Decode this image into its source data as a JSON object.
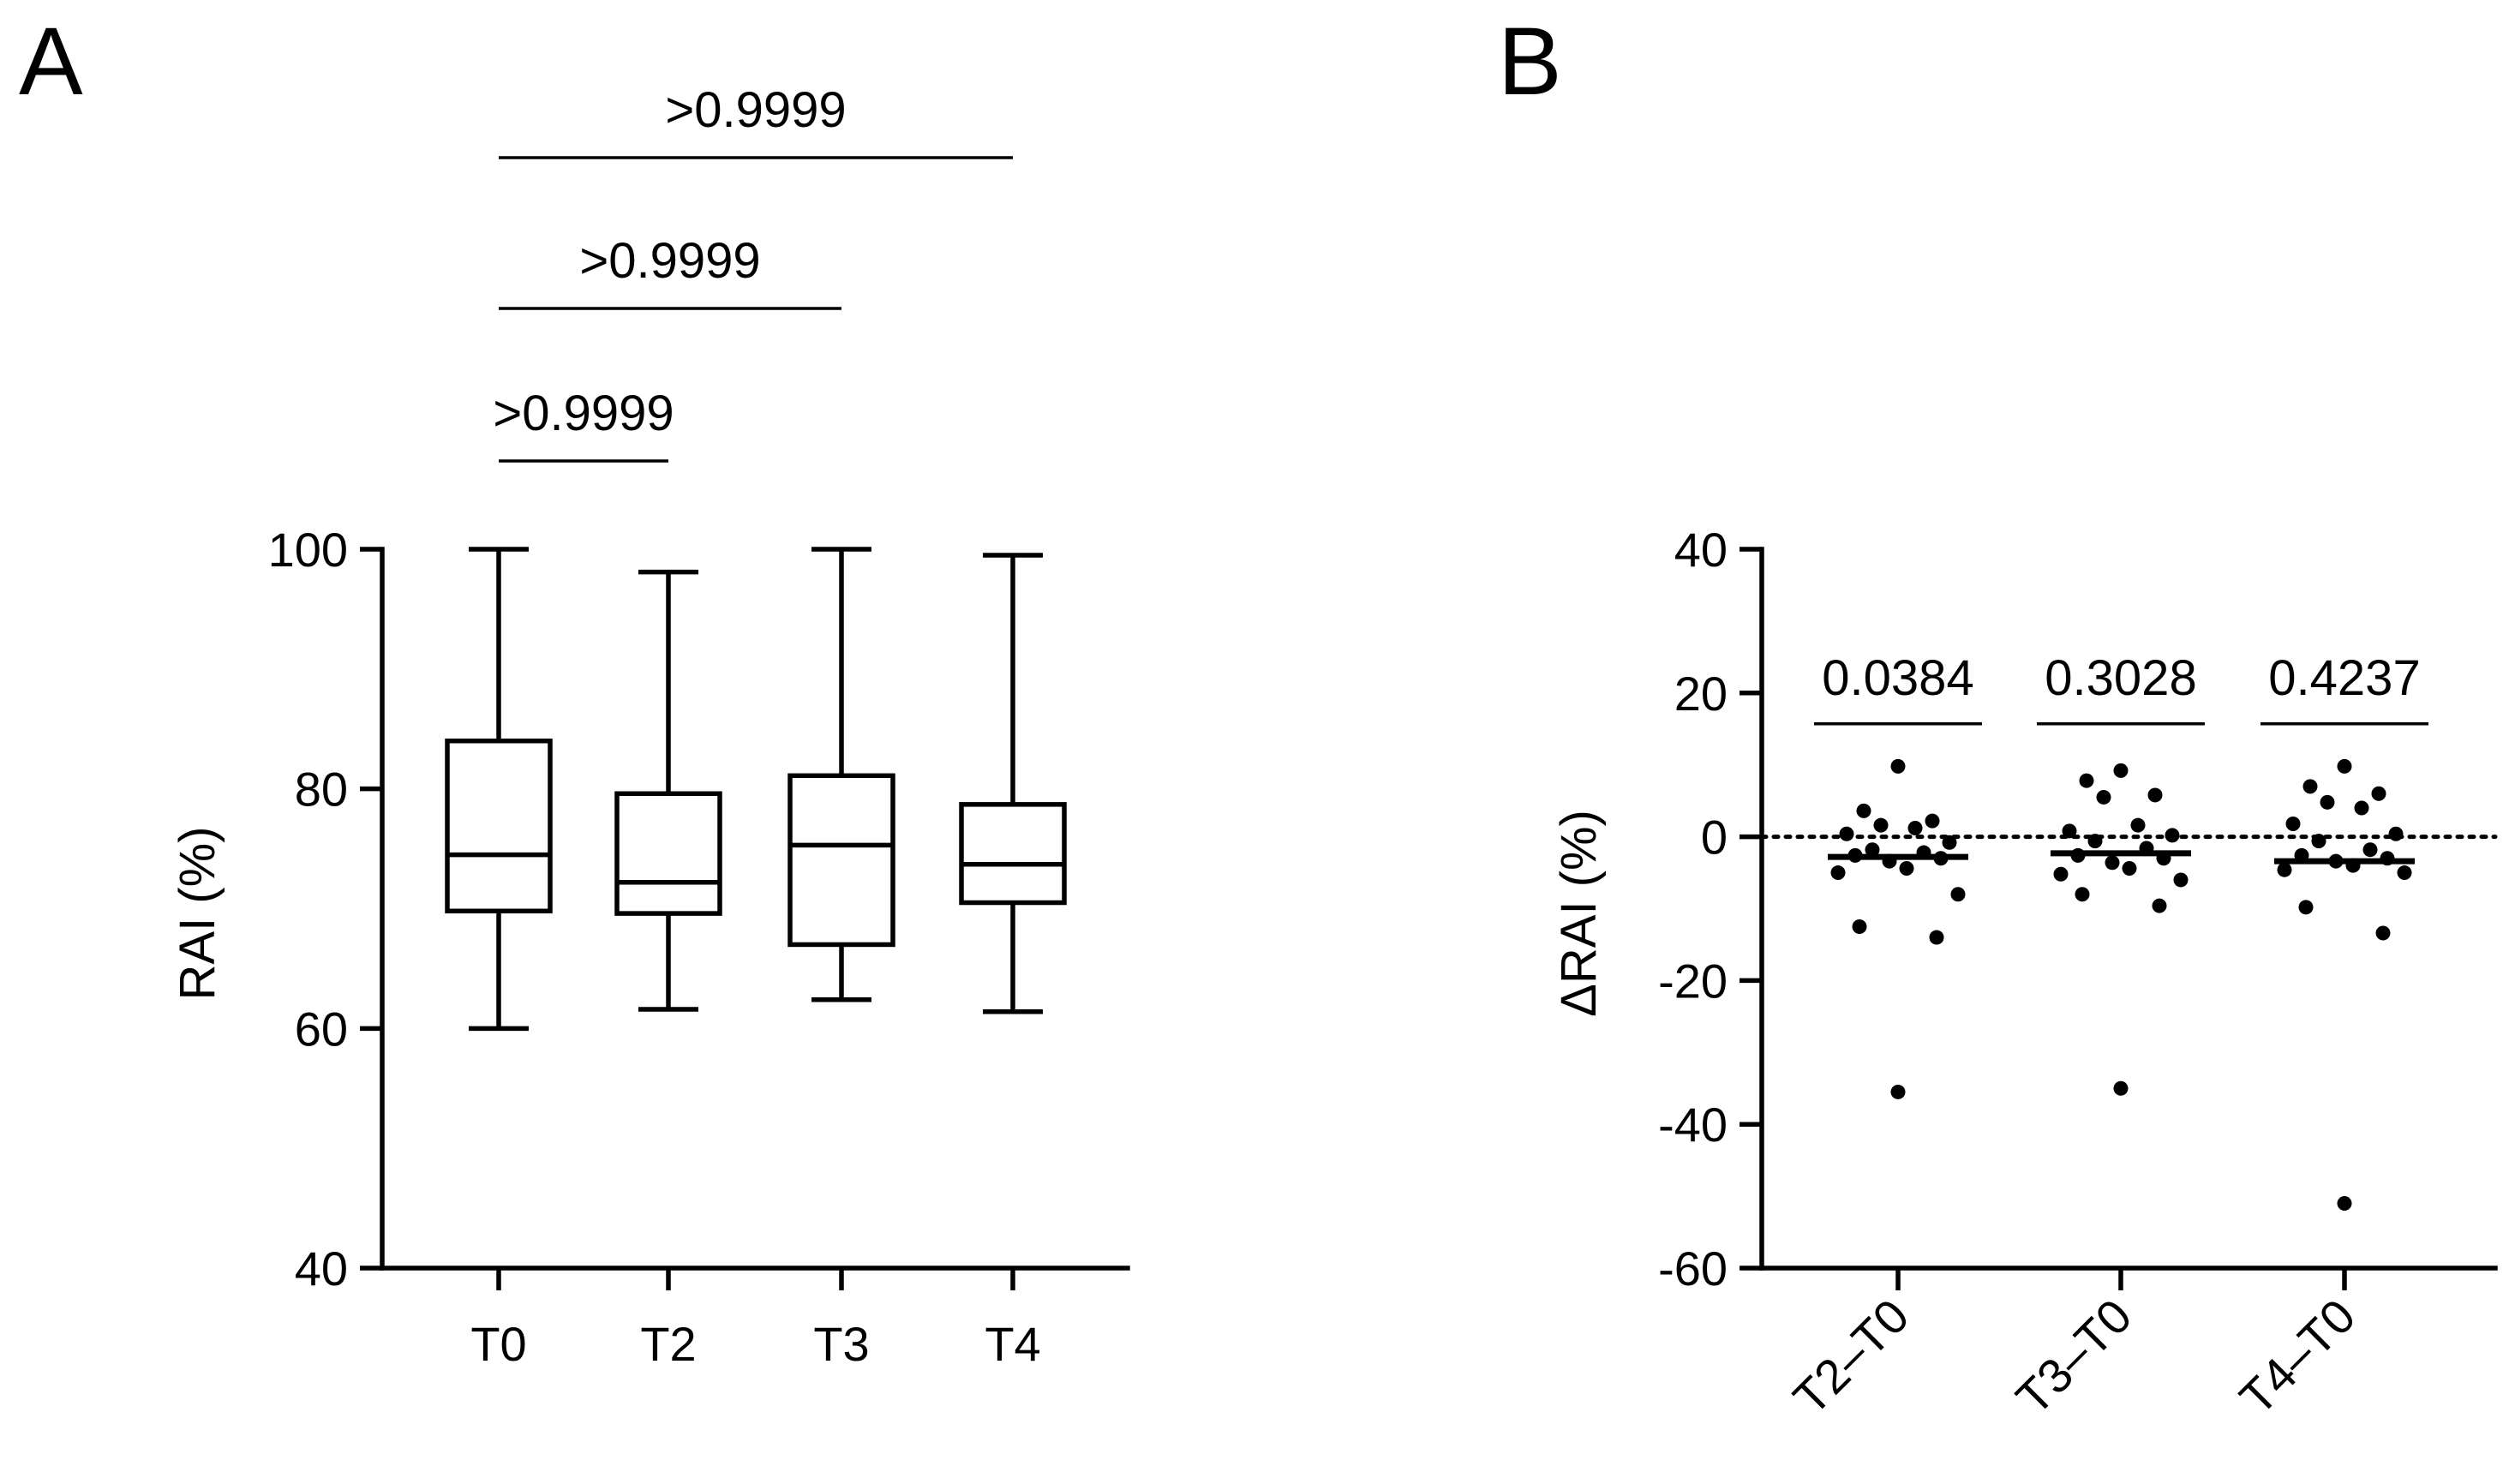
{
  "chart_data": [
    {
      "type": "box",
      "panel_label": "A",
      "title": "",
      "xlabel": "",
      "ylabel": "RAI (%)",
      "ylim": [
        40,
        100
      ],
      "yticks": [
        40,
        60,
        80,
        100
      ],
      "categories": [
        "T0",
        "T2",
        "T3",
        "T4"
      ],
      "boxes": [
        {
          "name": "T0",
          "min": 60,
          "q1": 69.8,
          "median": 74.5,
          "q3": 84,
          "max": 100
        },
        {
          "name": "T2",
          "min": 61.6,
          "q1": 69.6,
          "median": 72.2,
          "q3": 79.6,
          "max": 98.1
        },
        {
          "name": "T3",
          "min": 62.4,
          "q1": 67,
          "median": 75.3,
          "q3": 81.1,
          "max": 100
        },
        {
          "name": "T4",
          "min": 61.4,
          "q1": 70.5,
          "median": 73.7,
          "q3": 78.7,
          "max": 99.5
        }
      ],
      "comparisons": [
        {
          "from": "T0",
          "to": "T2",
          "label": ">0.9999"
        },
        {
          "from": "T0",
          "to": "T3",
          "label": ">0.9999"
        },
        {
          "from": "T0",
          "to": "T4",
          "label": ">0.9999"
        }
      ]
    },
    {
      "type": "scatter",
      "panel_label": "B",
      "title": "",
      "xlabel": "",
      "ylabel": "ΔRAI (%)",
      "ylim": [
        -60,
        40
      ],
      "yticks": [
        -60,
        -40,
        -20,
        0,
        20,
        40
      ],
      "reference_line": 0,
      "categories": [
        "T2–T0",
        "T3–T0",
        "T4–T0"
      ],
      "series": [
        {
          "name": "T2–T0",
          "median": -2.8,
          "p_label": "0.0384",
          "points": [
            9.8,
            3.6,
            2.2,
            1.6,
            1.2,
            0.4,
            -0.8,
            -1.8,
            -2.2,
            -2.6,
            -3.0,
            -3.4,
            -4.4,
            -5.0,
            -8.0,
            -12.5,
            -14.0,
            -35.5
          ]
        },
        {
          "name": "T3–T0",
          "median": -2.3,
          "p_label": "0.3028",
          "points": [
            9.2,
            7.8,
            5.8,
            5.5,
            1.6,
            0.8,
            0.2,
            -0.6,
            -1.6,
            -2.6,
            -3.0,
            -3.6,
            -4.4,
            -5.2,
            -6.0,
            -8.0,
            -9.6,
            -35.0
          ]
        },
        {
          "name": "T4–T0",
          "median": -3.4,
          "p_label": "0.4237",
          "points": [
            9.8,
            7.0,
            6.0,
            4.8,
            4.0,
            1.8,
            0.4,
            -0.6,
            -1.8,
            -2.6,
            -3.0,
            -3.4,
            -4.0,
            -4.6,
            -5.0,
            -9.8,
            -13.4,
            -51.0
          ]
        }
      ]
    }
  ]
}
